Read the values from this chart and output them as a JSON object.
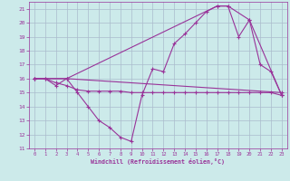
{
  "xlabel": "Windchill (Refroidissement éolien,°C)",
  "bg_color": "#cceaea",
  "grid_color": "#aabbcc",
  "line_color": "#993399",
  "xlim": [
    -0.5,
    23.5
  ],
  "ylim": [
    11,
    21.5
  ],
  "yticks": [
    11,
    12,
    13,
    14,
    15,
    16,
    17,
    18,
    19,
    20,
    21
  ],
  "xticks": [
    0,
    1,
    2,
    3,
    4,
    5,
    6,
    7,
    8,
    9,
    10,
    11,
    12,
    13,
    14,
    15,
    16,
    17,
    18,
    19,
    20,
    21,
    22,
    23
  ],
  "series": [
    {
      "x": [
        0,
        1,
        2,
        3,
        4,
        5,
        6,
        7,
        8,
        9,
        10,
        11,
        12,
        13,
        14,
        15,
        16,
        17,
        18,
        19,
        20,
        21,
        22,
        23
      ],
      "y": [
        16,
        16,
        15.5,
        16,
        15,
        14,
        13,
        12.5,
        11.8,
        11.5,
        14.8,
        16.7,
        16.5,
        18.5,
        19.2,
        20.0,
        20.8,
        21.2,
        21.2,
        19.0,
        20.2,
        17.0,
        16.5,
        14.8
      ]
    },
    {
      "x": [
        0,
        1,
        2,
        3,
        4,
        5,
        6,
        7,
        8,
        9,
        10,
        11,
        12,
        13,
        14,
        15,
        16,
        17,
        18,
        19,
        20,
        21,
        22,
        23
      ],
      "y": [
        16,
        16,
        15.7,
        15.5,
        15.2,
        15.1,
        15.1,
        15.1,
        15.1,
        15.0,
        15.0,
        15.0,
        15.0,
        15.0,
        15.0,
        15.0,
        15.0,
        15.0,
        15.0,
        15.0,
        15.0,
        15.0,
        15.0,
        14.8
      ]
    },
    {
      "x": [
        0,
        3,
        23
      ],
      "y": [
        16,
        16,
        15.0
      ]
    },
    {
      "x": [
        0,
        3,
        17,
        18,
        20,
        23
      ],
      "y": [
        16,
        16,
        21.2,
        21.2,
        20.2,
        14.8
      ]
    }
  ]
}
